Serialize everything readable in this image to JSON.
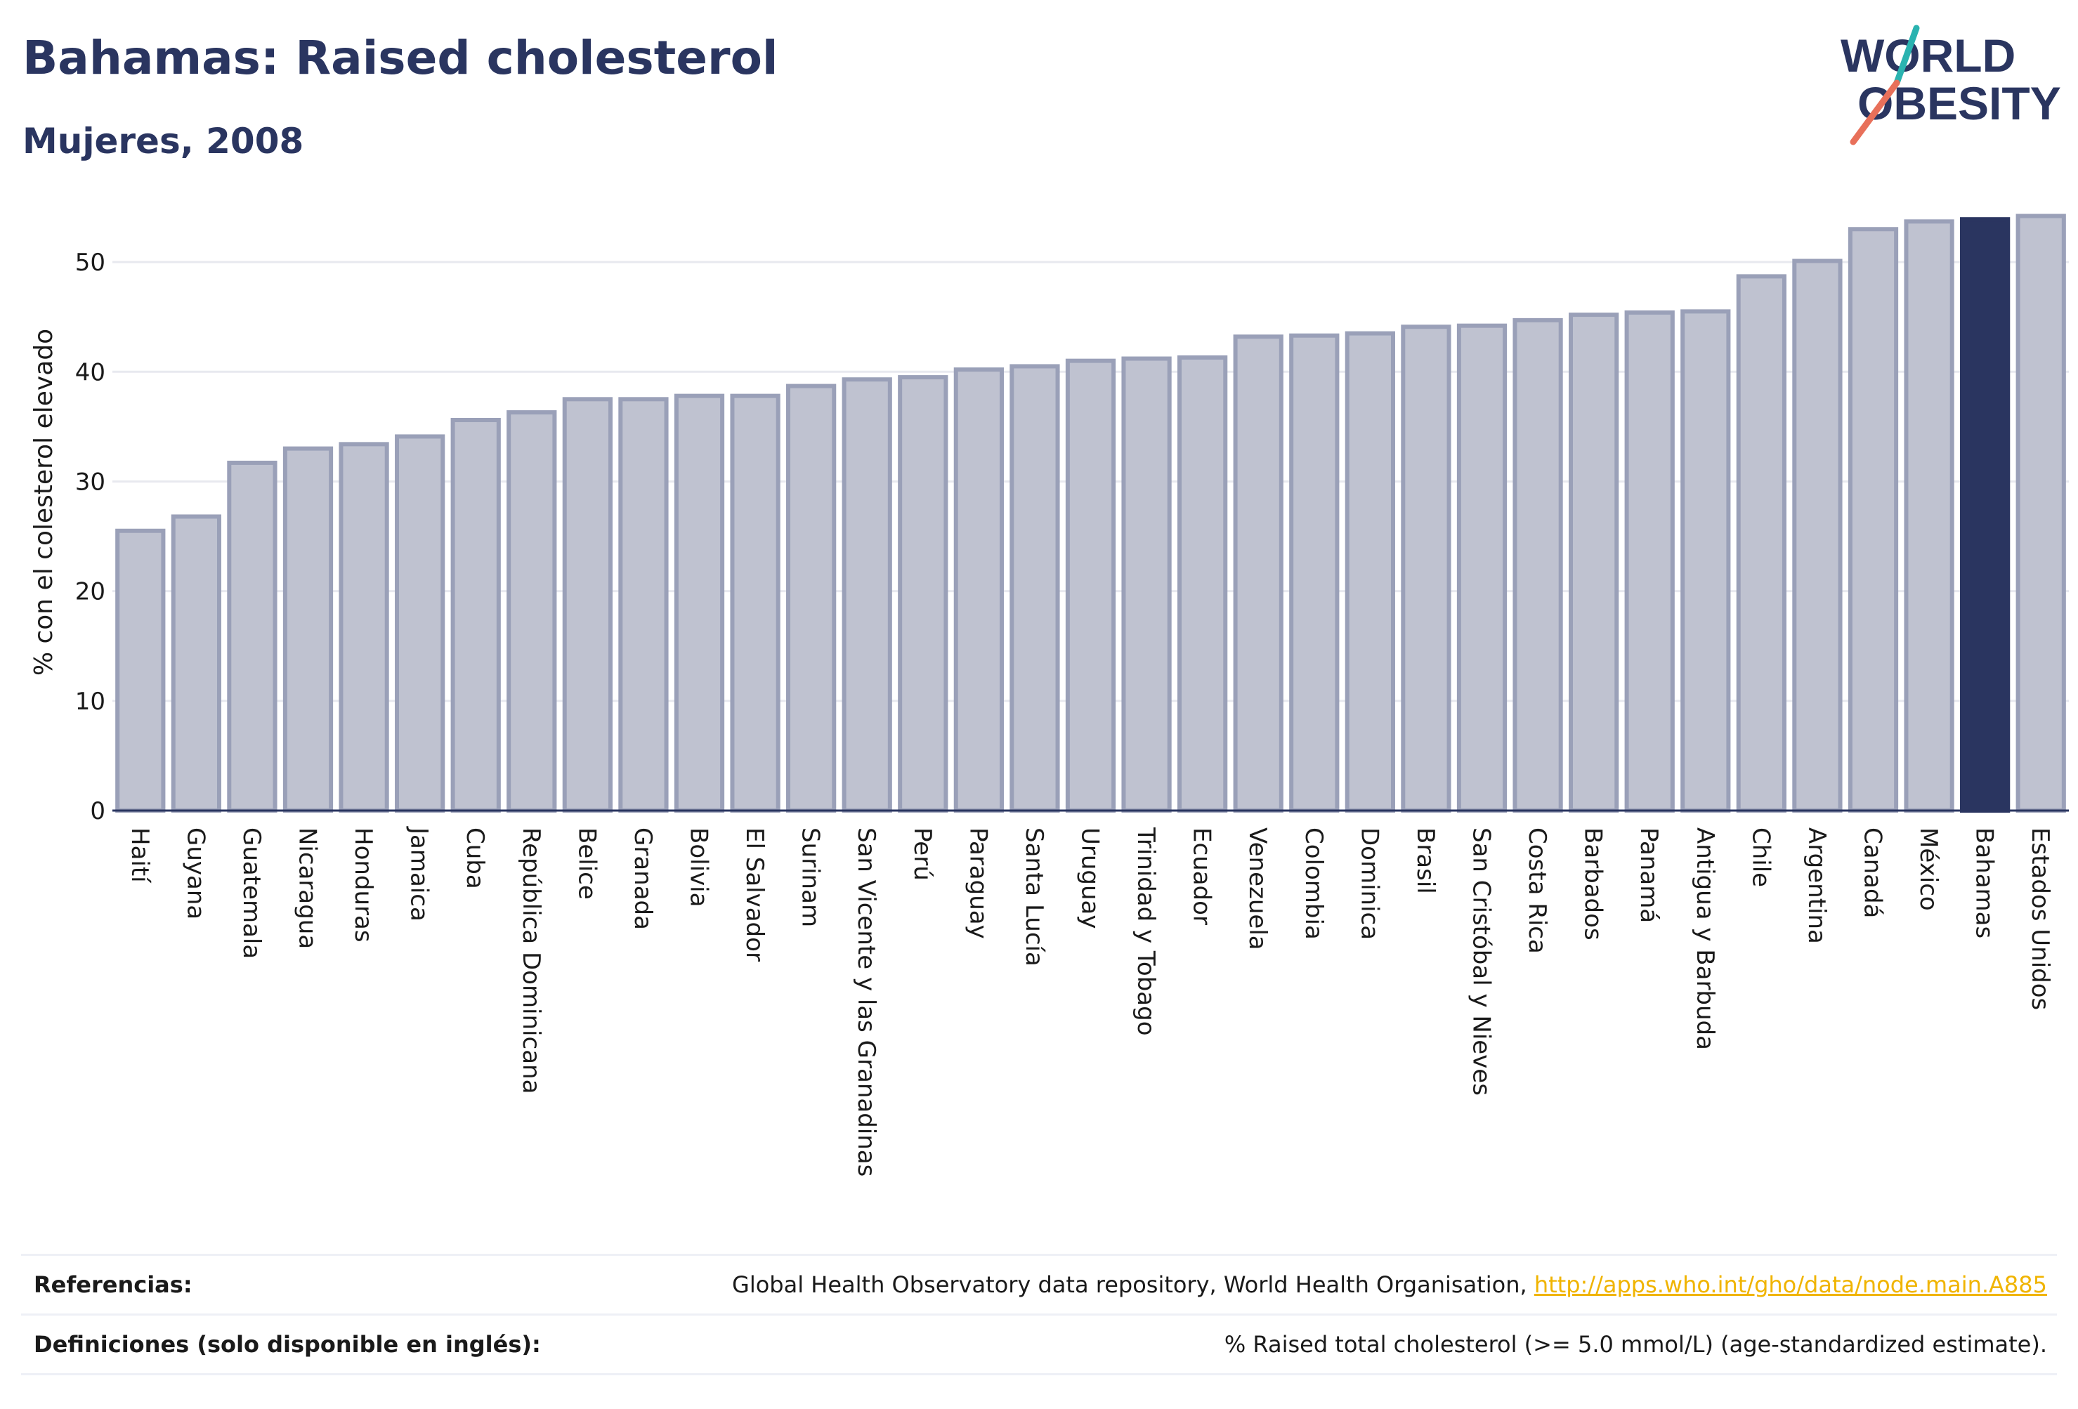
{
  "header": {
    "title": "Bahamas: Raised cholesterol",
    "subtitle": "Mujeres, 2008"
  },
  "logo": {
    "line1": "WORLD",
    "line2": "OBESITY",
    "name": "world-obesity-logo"
  },
  "colors": {
    "bar_fill": "#bfc2d0",
    "bar_stroke": "#9aa0b8",
    "highlight": "#2a3560",
    "title": "#2a3560",
    "link": "#f0b400",
    "grid": "#e8e9ef"
  },
  "chart_data": {
    "type": "bar",
    "ylabel": "% con el colesterol elevado",
    "ylim": [
      0,
      55
    ],
    "yticks": [
      0,
      10,
      20,
      30,
      40,
      50
    ],
    "grid": true,
    "highlight": "Bahamas",
    "categories": [
      "Haití",
      "Guyana",
      "Guatemala",
      "Nicaragua",
      "Honduras",
      "Jamaica",
      "Cuba",
      "República Dominicana",
      "Belice",
      "Granada",
      "Bolivia",
      "El Salvador",
      "Surinam",
      "San Vicente y las Granadinas",
      "Perú",
      "Paraguay",
      "Santa Lucía",
      "Uruguay",
      "Trinidad y Tobago",
      "Ecuador",
      "Venezuela",
      "Colombia",
      "Dominica",
      "Brasil",
      "San Cristóbal y Nieves",
      "Costa Rica",
      "Barbados",
      "Panamá",
      "Antigua y Barbuda",
      "Chile",
      "Argentina",
      "Canadá",
      "México",
      "Bahamas",
      "Estados Unidos"
    ],
    "values": [
      25.5,
      26.8,
      31.7,
      33.0,
      33.4,
      34.1,
      35.6,
      36.3,
      37.5,
      37.5,
      37.8,
      37.8,
      38.7,
      39.3,
      39.5,
      40.2,
      40.5,
      41.0,
      41.2,
      41.3,
      43.2,
      43.3,
      43.5,
      44.1,
      44.2,
      44.7,
      45.2,
      45.4,
      45.5,
      48.7,
      50.1,
      53.0,
      53.7,
      53.9,
      54.2
    ]
  },
  "footer": {
    "references_label": "Referencias:",
    "references_text": "Global Health Observatory data repository, World Health Organisation, ",
    "references_link": "http://apps.who.int/gho/data/node.main.A885",
    "definitions_label": "Definiciones (solo disponible en inglés):",
    "definitions_text": "% Raised total cholesterol (>= 5.0 mmol/L) (age-standardized estimate)."
  }
}
